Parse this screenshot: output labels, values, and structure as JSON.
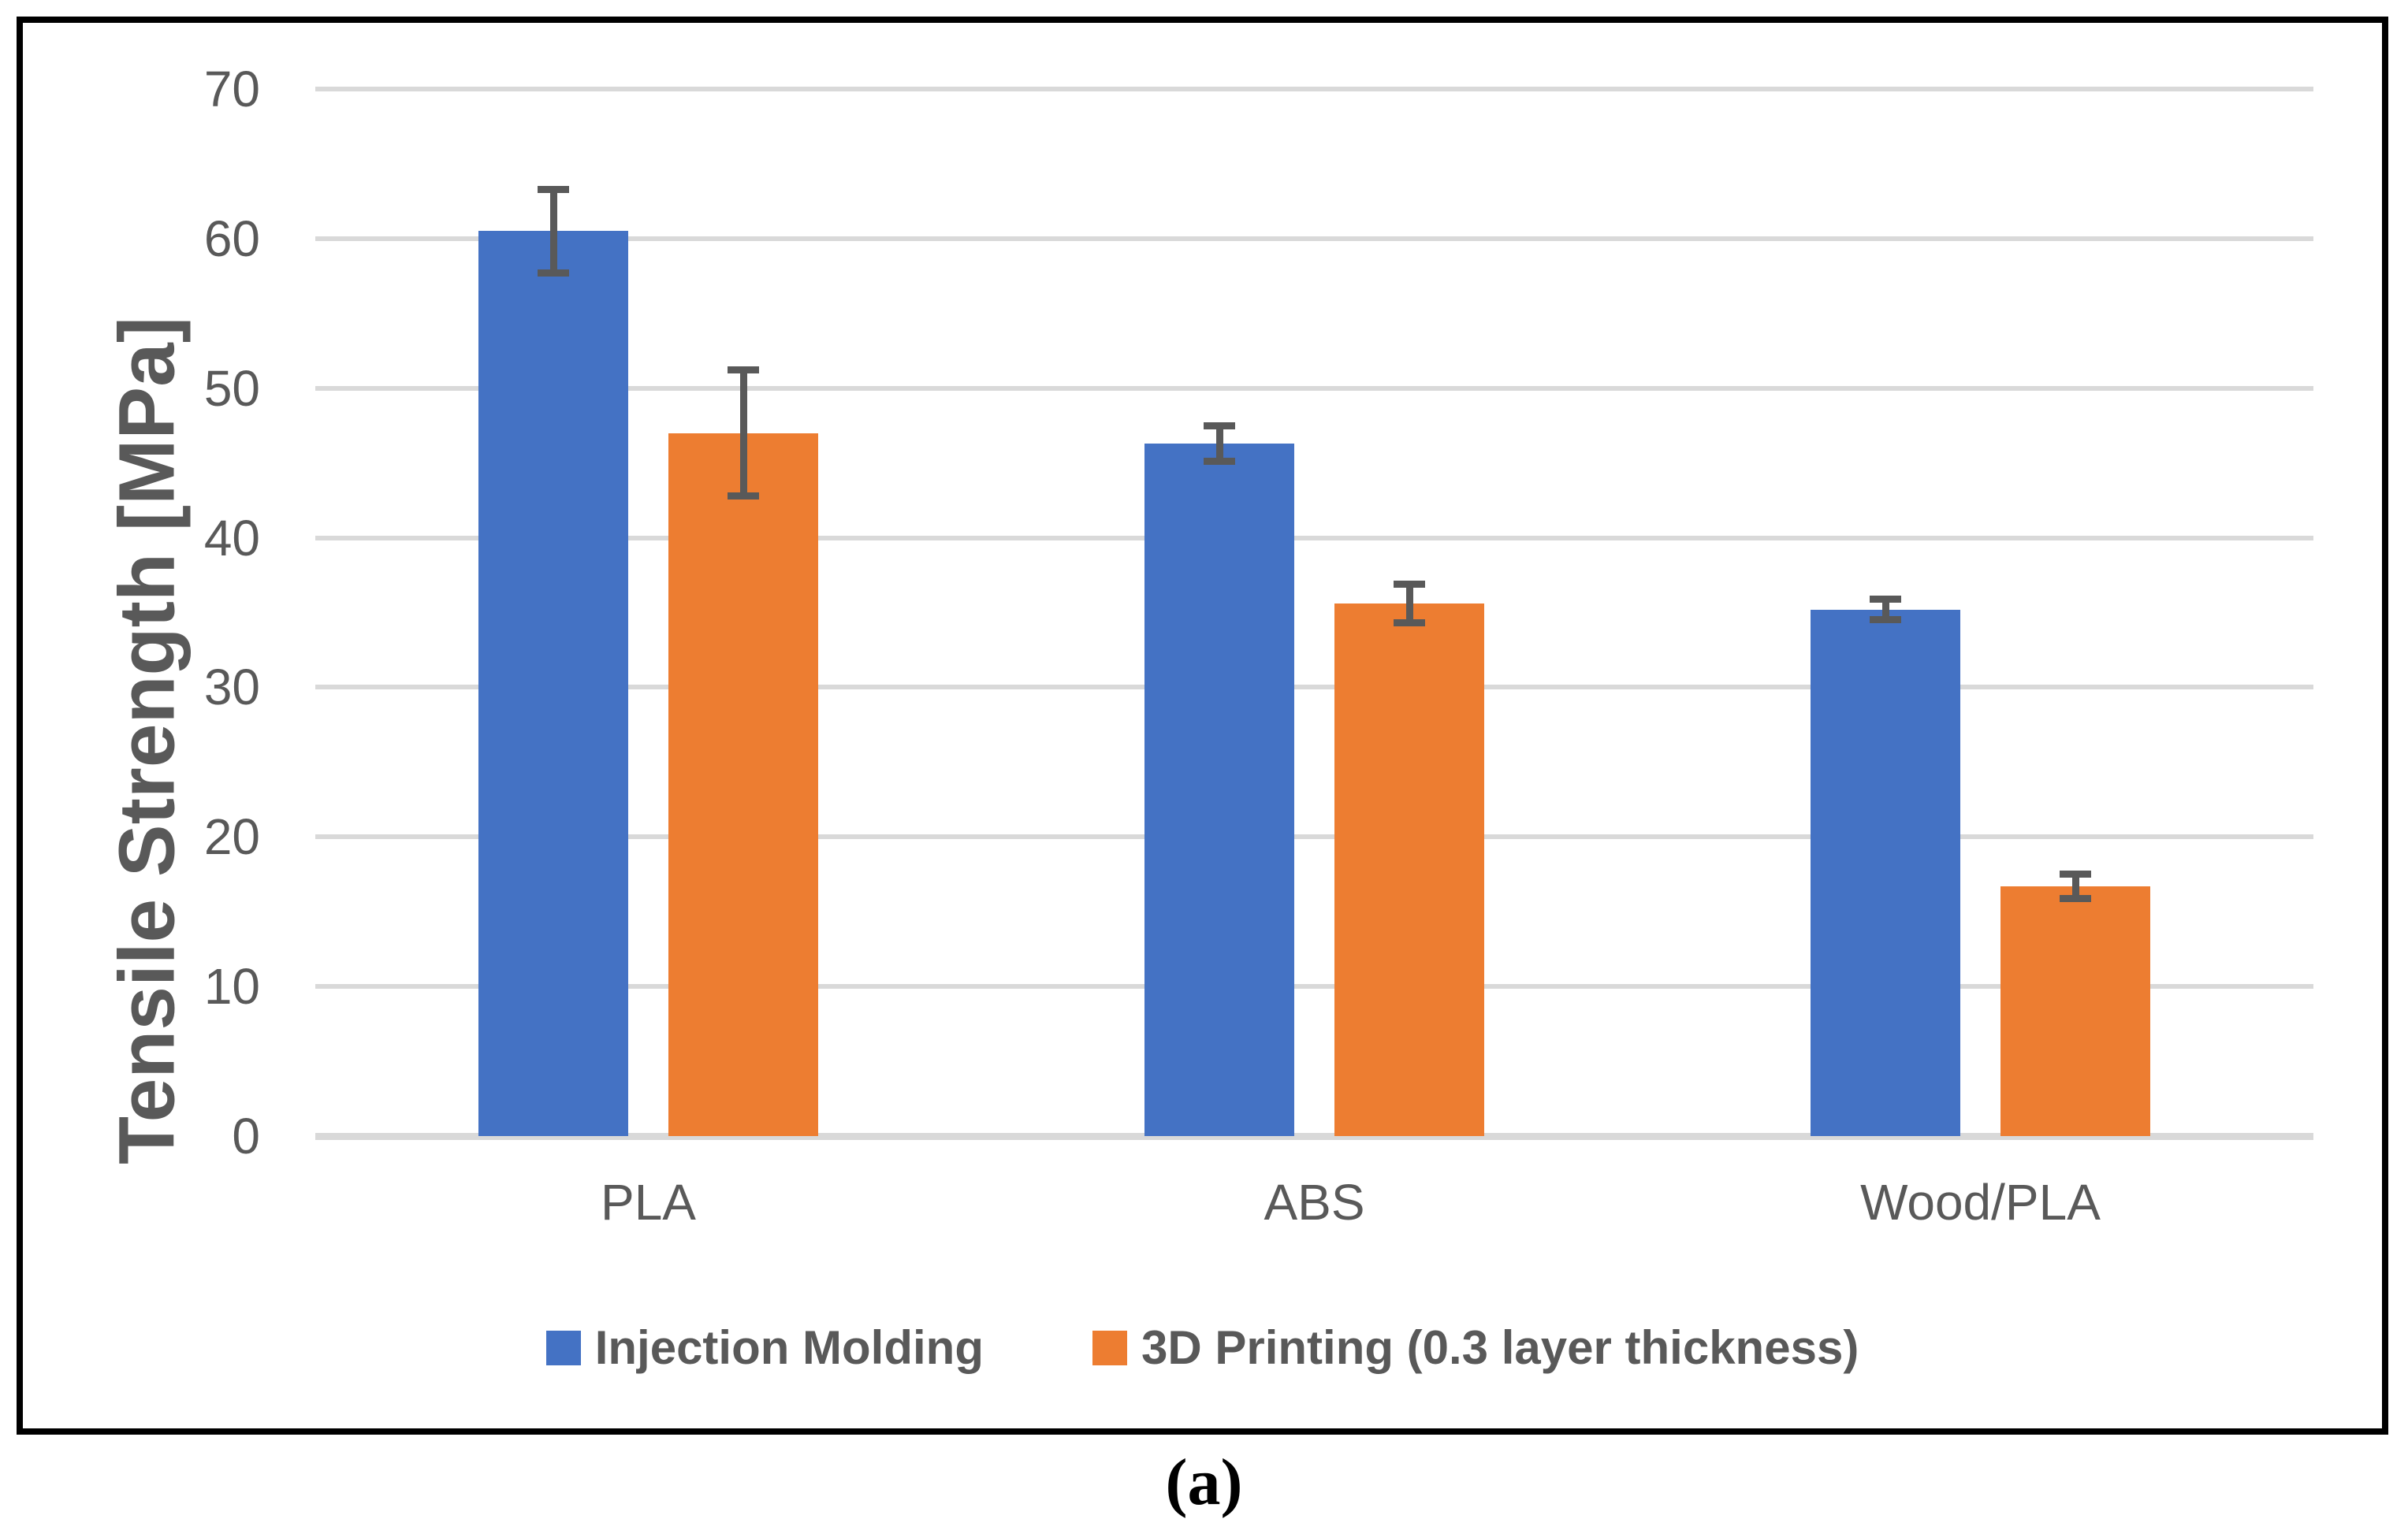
{
  "chart_data": {
    "type": "bar",
    "categories": [
      "PLA",
      "ABS",
      "Wood/PLA"
    ],
    "series": [
      {
        "name": "Injection Molding",
        "color": "#4472C4",
        "values": [
          60.5,
          46.3,
          35.2
        ],
        "errors": [
          2.8,
          1.2,
          0.7
        ]
      },
      {
        "name": "3D Printing (0.3 layer thickness)",
        "color": "#ED7D31",
        "values": [
          47.0,
          35.6,
          16.7
        ],
        "errors": [
          4.2,
          1.3,
          0.8
        ]
      }
    ],
    "title": "",
    "xlabel": "",
    "ylabel": "Tensile Strength [MPa]",
    "ylim": [
      0,
      70
    ],
    "yticks": [
      0,
      10,
      20,
      30,
      40,
      50,
      60,
      70
    ],
    "grid": true,
    "gridline_color": "#D9D9D9",
    "error_bar_color": "#595959",
    "legend_position": "bottom",
    "caption": "(a)"
  }
}
